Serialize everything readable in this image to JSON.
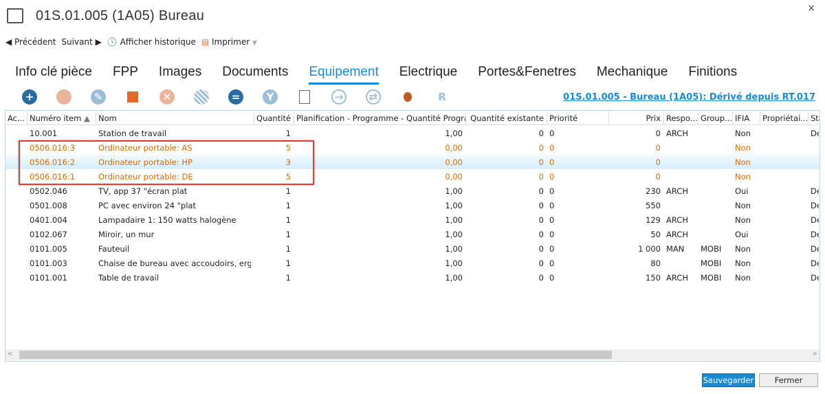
{
  "header": {
    "title": "01S.01.005 (1A05) Bureau",
    "close": "×"
  },
  "nav": {
    "previous": "Précédent",
    "next": "Suivant",
    "history": "Afficher historique",
    "print": "Imprimer"
  },
  "tabs": [
    {
      "label": "Info clé pièce"
    },
    {
      "label": "FPP"
    },
    {
      "label": "Images"
    },
    {
      "label": "Documents"
    },
    {
      "label": "Equipement",
      "active": true
    },
    {
      "label": "Electrique"
    },
    {
      "label": "Portes&Fenetres"
    },
    {
      "label": "Mechanique"
    },
    {
      "label": "Finitions"
    }
  ],
  "toolbar": {
    "icons": [
      "add-icon",
      "new-object-icon",
      "edit-icon",
      "3d-box-icon",
      "delete-icon",
      "hatch-icon",
      "equal-icon",
      "filter-icon",
      "report-icon",
      "arrow-right-icon",
      "sync-icon",
      "bug-icon",
      "revit-icon"
    ]
  },
  "room_link": "01S.01.005 - Bureau (1A05): Dérivé depuis RT.017",
  "table": {
    "columns": [
      "Ac...",
      "Numéro item",
      "Nom",
      "Quantité",
      "Planification - Programme - Quantité Progra...",
      "Quantité existante",
      "Priorité",
      "Prix",
      "Respo...",
      "Group...",
      "IFIA",
      "Propriétai...",
      "Sta"
    ],
    "rows": [
      [
        "",
        "10.001",
        "Station de travail",
        "1",
        "1,00",
        "0",
        "0",
        "0",
        "ARCH",
        "",
        "Non",
        "",
        "De"
      ],
      [
        "",
        "0506.016:3",
        "Ordinateur portable: AS",
        "5",
        "0,00",
        "0",
        "0",
        "0",
        "",
        "",
        "Non",
        "",
        ""
      ],
      [
        "",
        "0506.016:2",
        "Ordinateur portable: HP",
        "3",
        "0,00",
        "0",
        "0",
        "0",
        "",
        "",
        "Non",
        "",
        ""
      ],
      [
        "",
        "0506.016:1",
        "Ordinateur portable: DE",
        "5",
        "0,00",
        "0",
        "0",
        "0",
        "",
        "",
        "Non",
        "",
        ""
      ],
      [
        "",
        "0502.046",
        "TV, app 37 \"écran plat",
        "1",
        "1,00",
        "0",
        "0",
        "230",
        "ARCH",
        "",
        "Oui",
        "",
        "De"
      ],
      [
        "",
        "0501.008",
        "PC avec environ 24 \"plat",
        "1",
        "1,00",
        "0",
        "0",
        "550",
        "",
        "",
        "Non",
        "",
        "De"
      ],
      [
        "",
        "0401.004",
        "Lampadaire 1: 150 watts halogène",
        "1",
        "1,00",
        "0",
        "0",
        "129",
        "ARCH",
        "",
        "Non",
        "",
        "De"
      ],
      [
        "",
        "0102.067",
        "Miroir, un mur",
        "1",
        "1,00",
        "0",
        "0",
        "50",
        "ARCH",
        "",
        "Oui",
        "",
        "De"
      ],
      [
        "",
        "0101.005",
        "Fauteuil",
        "1",
        "1,00",
        "0",
        "0",
        "1 000",
        "MAN",
        "MOBI",
        "Non",
        "",
        "De"
      ],
      [
        "",
        "0101.003",
        "Chaise de bureau avec accoudoirs, erg...",
        "1",
        "1,00",
        "0",
        "0",
        "80",
        "",
        "MOBI",
        "Non",
        "",
        "De"
      ],
      [
        "",
        "0101.001",
        "Table de travail",
        "1",
        "1,00",
        "0",
        "0",
        "150",
        "ARCH",
        "MOBI",
        "Non",
        "",
        "De"
      ]
    ]
  },
  "buttons": {
    "save": "Sauvegarder",
    "close": "Fermer"
  },
  "colors": {
    "accent": "#1a8ad0",
    "highlight": "#d46b08",
    "box": "#e53935"
  }
}
